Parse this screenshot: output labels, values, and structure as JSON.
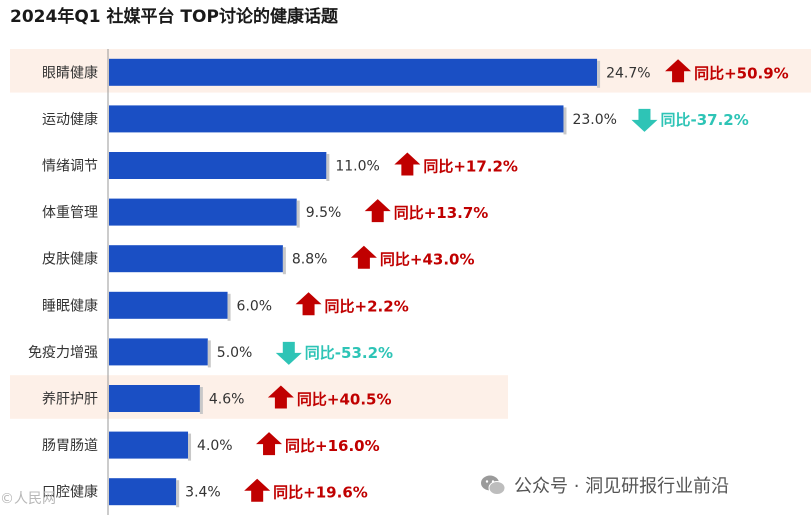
{
  "colors": {
    "bar": "#1a4fc4",
    "up": "#c00000",
    "down": "#2ec4b6",
    "highlight": "#fdf0e8"
  },
  "chart_data": {
    "type": "bar",
    "orientation": "horizontal",
    "title": "2024年Q1 社媒平台 TOP讨论的健康话题",
    "xlabel": "",
    "ylabel": "",
    "xlim": [
      0,
      25
    ],
    "grid": false,
    "categories": [
      "眼睛健康",
      "运动健康",
      "情绪调节",
      "体重管理",
      "皮肤健康",
      "睡眠健康",
      "免疫力增强",
      "养肝护肝",
      "肠胃肠道",
      "口腔健康"
    ],
    "values": [
      24.7,
      23.0,
      11.0,
      9.5,
      8.8,
      6.0,
      5.0,
      4.6,
      4.0,
      3.4
    ],
    "value_labels": [
      "24.7%",
      "23.0%",
      "11.0%",
      "9.5%",
      "8.8%",
      "6.0%",
      "5.0%",
      "4.6%",
      "4.0%",
      "3.4%"
    ],
    "yoy_labels": [
      "同比+50.9%",
      "同比-37.2%",
      "同比+17.2%",
      "同比+13.7%",
      "同比+43.0%",
      "同比+2.2%",
      "同比-53.2%",
      "同比+40.5%",
      "同比+16.0%",
      "同比+19.6%"
    ],
    "yoy_direction": [
      "up",
      "down",
      "up",
      "up",
      "up",
      "up",
      "down",
      "up",
      "up",
      "up"
    ],
    "highlighted": [
      true,
      false,
      false,
      false,
      false,
      false,
      false,
      true,
      false,
      false
    ]
  },
  "watermark": {
    "text": "公众号 · 洞见研报行业前沿",
    "icon": "wechat-icon"
  },
  "corner_mark": "©人民网"
}
